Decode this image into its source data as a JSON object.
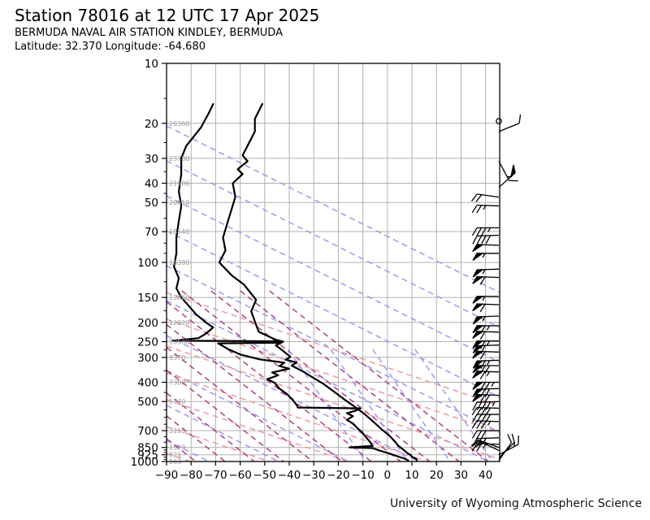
{
  "header": {
    "title": "Station 78016 at 12 UTC 17 Apr 2025",
    "station": "BERMUDA NAVAL AIR STATION KINDLEY, BERMUDA",
    "coords": "Latitude: 32.370 Longitude: -64.680"
  },
  "footer": {
    "credit": "University of Wyoming Atmospheric Science"
  },
  "chart_data": {
    "type": "line",
    "title": "Station 78016 at 12 UTC 17 Apr 2025",
    "xlabel": "",
    "ylabel": "",
    "x_axis": {
      "unit": "C",
      "min": -90,
      "max": 45.7,
      "ticks": [
        -90,
        -80,
        -70,
        -60,
        -50,
        -40,
        -30,
        -20,
        -10,
        0,
        10,
        20,
        30,
        40
      ],
      "tick_labels": [
        "−90",
        "−80",
        "−70",
        "−60",
        "−50",
        "−40",
        "−30",
        "−20",
        "−10",
        "0",
        "10",
        "20",
        "30",
        "40"
      ]
    },
    "y_axis": {
      "unit": "hPa",
      "scale": "log",
      "top": 10,
      "bottom": 1000,
      "ticks": [
        10,
        20,
        30,
        40,
        50,
        70,
        100,
        150,
        200,
        250,
        300,
        400,
        500,
        700,
        850,
        925,
        1000
      ],
      "tick_labels": [
        "10",
        "20",
        "30",
        "40",
        "50",
        "70",
        "100",
        "150",
        "200",
        "250",
        "300",
        "400",
        "500",
        "700",
        "850",
        "925",
        "1000"
      ],
      "minor_ticks": [
        15,
        25,
        35,
        45,
        60,
        80,
        90,
        125,
        175,
        225,
        275,
        350,
        450,
        550,
        600,
        650,
        750,
        800,
        875,
        900,
        950,
        975
      ]
    },
    "height_labels": [
      {
        "p": 20,
        "label": "26360"
      },
      {
        "p": 30,
        "label": "23780"
      },
      {
        "p": 40,
        "label": "21986"
      },
      {
        "p": 50,
        "label": "20610"
      },
      {
        "p": 70,
        "label": "18540"
      },
      {
        "p": 100,
        "label": "16390"
      },
      {
        "p": 150,
        "label": "13860"
      },
      {
        "p": 200,
        "label": "12020"
      },
      {
        "p": 250,
        "label": "10580"
      },
      {
        "p": 300,
        "label": "9370"
      },
      {
        "p": 400,
        "label": "7380"
      },
      {
        "p": 500,
        "label": "5740"
      },
      {
        "p": 700,
        "label": "3115"
      },
      {
        "p": 850,
        "label": "1529"
      },
      {
        "p": 925,
        "label": "821"
      },
      {
        "p": 1000,
        "label": "163"
      }
    ],
    "series": [
      {
        "name": "temperature",
        "color": "#000000",
        "points": [
          [
            -51,
            16
          ],
          [
            -54,
            19
          ],
          [
            -54,
            22
          ],
          [
            -59,
            29
          ],
          [
            -57,
            31
          ],
          [
            -61,
            34
          ],
          [
            -59,
            36
          ],
          [
            -63,
            40
          ],
          [
            -62,
            47
          ],
          [
            -65.5,
            65
          ],
          [
            -67,
            75
          ],
          [
            -66,
            87
          ],
          [
            -68.5,
            100
          ],
          [
            -63.5,
            116
          ],
          [
            -58.5,
            129
          ],
          [
            -53.5,
            154
          ],
          [
            -55.5,
            176
          ],
          [
            -52.5,
            223
          ],
          [
            -46,
            243
          ],
          [
            -42.5,
            250
          ],
          [
            -45.5,
            261
          ],
          [
            -43.5,
            272
          ],
          [
            -39.5,
            298
          ],
          [
            -41.5,
            308
          ],
          [
            -37,
            318
          ],
          [
            -39,
            330
          ],
          [
            -34,
            355
          ],
          [
            -31,
            375
          ],
          [
            -26,
            408
          ],
          [
            -21.5,
            448
          ],
          [
            -17.5,
            488
          ],
          [
            -13,
            535
          ],
          [
            -9.5,
            575
          ],
          [
            -5.5,
            635
          ],
          [
            -2,
            695
          ],
          [
            1,
            745
          ],
          [
            3,
            792
          ],
          [
            4.5,
            835
          ],
          [
            6.5,
            872
          ],
          [
            8,
            905
          ],
          [
            9.5,
            928
          ],
          [
            10,
            948
          ],
          [
            11.5,
            965
          ],
          [
            12,
            985
          ]
        ]
      },
      {
        "name": "dewpoint",
        "color": "#000000",
        "points": [
          [
            -71,
            16
          ],
          [
            -73,
            18
          ],
          [
            -76,
            21
          ],
          [
            -82,
            26
          ],
          [
            -84,
            30
          ],
          [
            -84,
            36
          ],
          [
            -85,
            44
          ],
          [
            -84,
            52
          ],
          [
            -85,
            62
          ],
          [
            -86,
            75
          ],
          [
            -86,
            90
          ],
          [
            -87,
            105
          ],
          [
            -85,
            120
          ],
          [
            -86,
            135
          ],
          [
            -84,
            150
          ],
          [
            -81,
            165
          ],
          [
            -78,
            182
          ],
          [
            -74,
            200
          ],
          [
            -71,
            212
          ],
          [
            -74,
            228
          ],
          [
            -77,
            240
          ],
          [
            -87.5,
            247
          ],
          [
            -43,
            249
          ],
          [
            -43.5,
            253
          ],
          [
            -69,
            255
          ],
          [
            -65,
            272
          ],
          [
            -60,
            290
          ],
          [
            -52,
            307
          ],
          [
            -42,
            319
          ],
          [
            -44,
            331
          ],
          [
            -40,
            342
          ],
          [
            -47,
            357
          ],
          [
            -44.5,
            369
          ],
          [
            -49,
            386
          ],
          [
            -46,
            402
          ],
          [
            -44,
            430
          ],
          [
            -41,
            458
          ],
          [
            -38.5,
            492
          ],
          [
            -37,
            520
          ],
          [
            -36.5,
            536
          ],
          [
            -11,
            541
          ],
          [
            -13,
            556
          ],
          [
            -16.5,
            572
          ],
          [
            -14,
            592
          ],
          [
            -16.5,
            618
          ],
          [
            -14,
            645
          ],
          [
            -12,
            685
          ],
          [
            -10,
            722
          ],
          [
            -8.5,
            760
          ],
          [
            -7,
            800
          ],
          [
            -6,
            836
          ],
          [
            -15.5,
            849
          ],
          [
            -6,
            856
          ],
          [
            -3.5,
            878
          ],
          [
            -0.5,
            902
          ],
          [
            2,
            922
          ],
          [
            4.5,
            945
          ],
          [
            7,
            968
          ],
          [
            8.5,
            988
          ]
        ]
      }
    ],
    "wind_barbs": [
      {
        "p": 19.5,
        "spd": 0,
        "dir": 0
      },
      {
        "p": 22,
        "spd": 10,
        "dir": 68
      },
      {
        "p": 31,
        "spd": 15,
        "dir": 152
      },
      {
        "p": 42,
        "spd": 50,
        "dir": 48
      },
      {
        "p": 47,
        "spd": 20,
        "dir": 278
      },
      {
        "p": 52,
        "spd": 25,
        "dir": 272
      },
      {
        "p": 67,
        "spd": 35,
        "dir": 270
      },
      {
        "p": 73,
        "spd": 40,
        "dir": 268
      },
      {
        "p": 82,
        "spd": 50,
        "dir": 272
      },
      {
        "p": 90,
        "spd": 55,
        "dir": 270
      },
      {
        "p": 108,
        "spd": 55,
        "dir": 268
      },
      {
        "p": 119,
        "spd": 60,
        "dir": 272
      },
      {
        "p": 148,
        "spd": 55,
        "dir": 270
      },
      {
        "p": 163,
        "spd": 60,
        "dir": 272
      },
      {
        "p": 186,
        "spd": 55,
        "dir": 268
      },
      {
        "p": 208,
        "spd": 65,
        "dir": 270
      },
      {
        "p": 224,
        "spd": 60,
        "dir": 272
      },
      {
        "p": 248,
        "spd": 65,
        "dir": 270
      },
      {
        "p": 260,
        "spd": 60,
        "dir": 268
      },
      {
        "p": 282,
        "spd": 60,
        "dir": 272
      },
      {
        "p": 310,
        "spd": 65,
        "dir": 268
      },
      {
        "p": 330,
        "spd": 70,
        "dir": 270
      },
      {
        "p": 355,
        "spd": 65,
        "dir": 272
      },
      {
        "p": 400,
        "spd": 75,
        "dir": 270
      },
      {
        "p": 430,
        "spd": 70,
        "dir": 268
      },
      {
        "p": 465,
        "spd": 70,
        "dir": 272
      },
      {
        "p": 500,
        "spd": 45,
        "dir": 268
      },
      {
        "p": 540,
        "spd": 40,
        "dir": 272
      },
      {
        "p": 580,
        "spd": 40,
        "dir": 270
      },
      {
        "p": 630,
        "spd": 35,
        "dir": 272
      },
      {
        "p": 700,
        "spd": 30,
        "dir": 270
      },
      {
        "p": 760,
        "spd": 25,
        "dir": 268
      },
      {
        "p": 820,
        "spd": 25,
        "dir": 272
      },
      {
        "p": 850,
        "spd": 20,
        "dir": 290
      },
      {
        "p": 880,
        "spd": 15,
        "dir": 295
      },
      {
        "p": 925,
        "spd": 15,
        "dir": 62
      },
      {
        "p": 960,
        "spd": 12,
        "dir": 45
      },
      {
        "p": 988,
        "spd": 10,
        "dir": 35
      }
    ],
    "guide_lines": {
      "families": [
        {
          "name": "dry-adiabats",
          "color": "#9a9af0",
          "slope": 0.5,
          "anchor": "left",
          "y0": 155,
          "step": 43,
          "count": 10,
          "clip_y": 78
        },
        {
          "name": "moist-adiabats",
          "color": "#f09a9a",
          "slope": 0.34,
          "anchor": "left",
          "y0": 360,
          "step": 33,
          "count": 7,
          "clip_y": 356
        },
        {
          "name": "mixing-ratio-lines",
          "color": "#b04080",
          "slope": 0.78,
          "anchor": "bottom",
          "x0": 205,
          "step": 36,
          "count": 12,
          "clip_y": 358
        },
        {
          "name": "steep-isohumes",
          "color": "#9a9af0",
          "slope": 1.45,
          "anchor": "bottom",
          "x0": 450,
          "step": 52,
          "count": 4,
          "clip_y": 430
        }
      ]
    },
    "colors": {
      "grid": "#b0b0b0",
      "spine": "#000000",
      "height_label": "#999999",
      "curve": "#000000"
    },
    "legend": "none",
    "grid": "on"
  }
}
